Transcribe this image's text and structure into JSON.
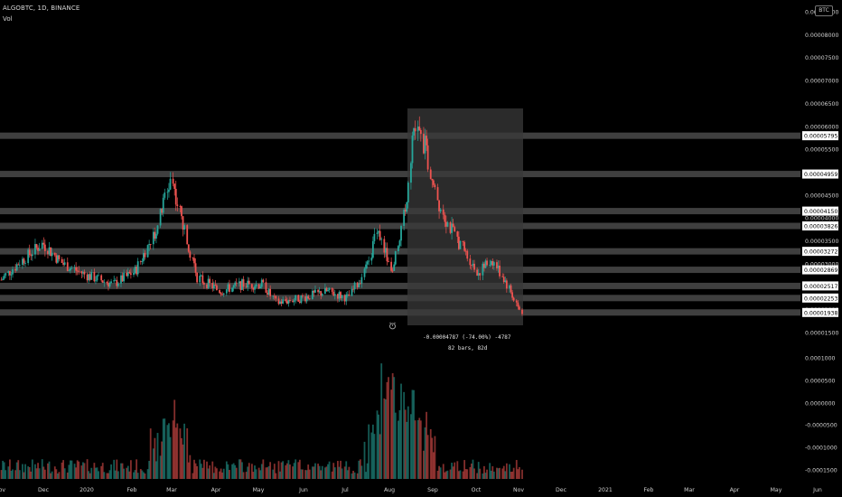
{
  "header": {
    "symbol_line": "ALGOBTC, 1D, BINANCE",
    "volume_label": "Vol"
  },
  "currency_badge": "BTC",
  "measure": {
    "line1": "-0.00004787 (-74.00%) -4787",
    "line2": "82 bars, 82d"
  },
  "colors": {
    "background": "#000000",
    "up": "#26a69a",
    "down": "#ef5350",
    "level_band": "#5a5a5a",
    "measure_box": "#3a3a3a"
  },
  "chart_data": {
    "type": "candlestick",
    "title": "ALGOBTC, 1D, BINANCE",
    "price_axis_ticks": [
      "0.00008500",
      "0.00008000",
      "0.00007500",
      "0.00007000",
      "0.00006500",
      "0.00006000",
      "0.00005500",
      "0.00005000",
      "0.00004500",
      "0.00004000",
      "0.00003500",
      "0.00003000",
      "0.00002500",
      "0.00002000",
      "0.00001500"
    ],
    "volume_axis_ticks": [
      "0.0000500",
      "0.0000000",
      "-0.0000500",
      "-0.0001000",
      "-0.0001500"
    ],
    "volume_axis_ticks_upper": [
      "0.0001000"
    ],
    "price_labels": [
      "0.00005795",
      "0.00004959",
      "0.00004150",
      "0.00003826",
      "0.00003272",
      "0.00002869",
      "0.00002517",
      "0.00002253",
      "0.00001938"
    ],
    "x_labels": [
      "Nov",
      "Dec",
      "2020",
      "Feb",
      "Mar",
      "Apr",
      "May",
      "Jun",
      "Jul",
      "Aug",
      "Sep",
      "Oct",
      "Nov",
      "Dec",
      "2021",
      "Feb",
      "Mar",
      "Apr",
      "May",
      "Jun"
    ],
    "ylim": [
      1.5e-05,
      8.5e-06
    ],
    "approx_close_series": [
      {
        "date": "2019-11-01",
        "close": 2.65e-05
      },
      {
        "date": "2019-11-15",
        "close": 3.05e-05
      },
      {
        "date": "2019-12-01",
        "close": 3.45e-05
      },
      {
        "date": "2019-12-15",
        "close": 3e-05
      },
      {
        "date": "2020-01-01",
        "close": 2.75e-05
      },
      {
        "date": "2020-01-20",
        "close": 2.55e-05
      },
      {
        "date": "2020-02-05",
        "close": 2.85e-05
      },
      {
        "date": "2020-02-20",
        "close": 3.8e-05
      },
      {
        "date": "2020-03-01",
        "close": 4.9e-05
      },
      {
        "date": "2020-03-10",
        "close": 3.8e-05
      },
      {
        "date": "2020-03-20",
        "close": 2.7e-05
      },
      {
        "date": "2020-04-05",
        "close": 2.4e-05
      },
      {
        "date": "2020-04-20",
        "close": 2.55e-05
      },
      {
        "date": "2020-05-05",
        "close": 2.55e-05
      },
      {
        "date": "2020-05-15",
        "close": 2.15e-05
      },
      {
        "date": "2020-06-01",
        "close": 2.25e-05
      },
      {
        "date": "2020-06-20",
        "close": 2.4e-05
      },
      {
        "date": "2020-07-05",
        "close": 2.25e-05
      },
      {
        "date": "2020-07-20",
        "close": 3e-05
      },
      {
        "date": "2020-07-25",
        "close": 3.85e-05
      },
      {
        "date": "2020-08-05",
        "close": 2.8e-05
      },
      {
        "date": "2020-08-15",
        "close": 4.3e-05
      },
      {
        "date": "2020-08-20",
        "close": 6e-05
      },
      {
        "date": "2020-08-28",
        "close": 5.6e-05
      },
      {
        "date": "2020-09-05",
        "close": 4.5e-05
      },
      {
        "date": "2020-09-15",
        "close": 3.8e-05
      },
      {
        "date": "2020-09-25",
        "close": 3.3e-05
      },
      {
        "date": "2020-10-05",
        "close": 2.8e-05
      },
      {
        "date": "2020-10-15",
        "close": 3.1e-05
      },
      {
        "date": "2020-10-25",
        "close": 2.6e-05
      },
      {
        "date": "2020-11-05",
        "close": 1.9e-05
      }
    ],
    "volume_peaks": [
      {
        "date": "2020-03-01",
        "level": "high"
      },
      {
        "date": "2020-08-01",
        "level": "highest"
      },
      {
        "date": "2020-08-18",
        "level": "high"
      }
    ]
  }
}
